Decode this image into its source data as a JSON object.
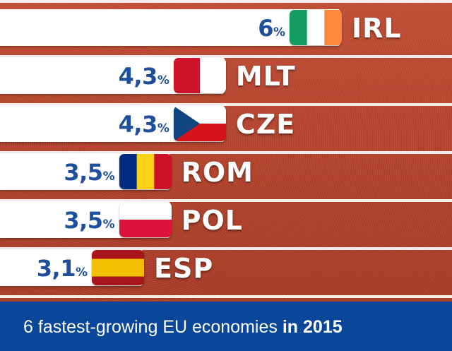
{
  "chart_data": {
    "type": "bar",
    "orientation": "horizontal",
    "categories": [
      "IRL",
      "MLT",
      "CZE",
      "ROM",
      "POL",
      "ESP"
    ],
    "values": [
      6,
      4.3,
      4.3,
      3.5,
      3.5,
      3.1
    ],
    "value_labels": [
      "6",
      "4,3",
      "4,3",
      "3,5",
      "3,5",
      "3,1"
    ],
    "unit": "%",
    "title_text": "6 fastest-growing EU economies",
    "title_bold": "in 2015",
    "xlabel": "",
    "ylabel": "",
    "grid": false,
    "legend": "none"
  },
  "flags": [
    {
      "code": "IRL",
      "icon": "ireland-flag-icon",
      "colors": [
        "#169b62",
        "#ffffff",
        "#ff883e"
      ]
    },
    {
      "code": "MLT",
      "icon": "malta-flag-icon",
      "colors": [
        "#ffffff",
        "#cf142b"
      ]
    },
    {
      "code": "CZE",
      "icon": "czech-flag-icon",
      "colors": [
        "#ffffff",
        "#d7141a",
        "#11457e"
      ]
    },
    {
      "code": "ROM",
      "icon": "romania-flag-icon",
      "colors": [
        "#002b7f",
        "#fcd116",
        "#ce1126"
      ]
    },
    {
      "code": "POL",
      "icon": "poland-flag-icon",
      "colors": [
        "#ffffff",
        "#dc143c"
      ]
    },
    {
      "code": "ESP",
      "icon": "spain-flag-icon",
      "colors": [
        "#aa151b",
        "#f1bf00"
      ]
    }
  ],
  "colors": {
    "value_text": "#1d4f9c",
    "footer_bg": "#0a469a",
    "track": "#b8462e"
  }
}
